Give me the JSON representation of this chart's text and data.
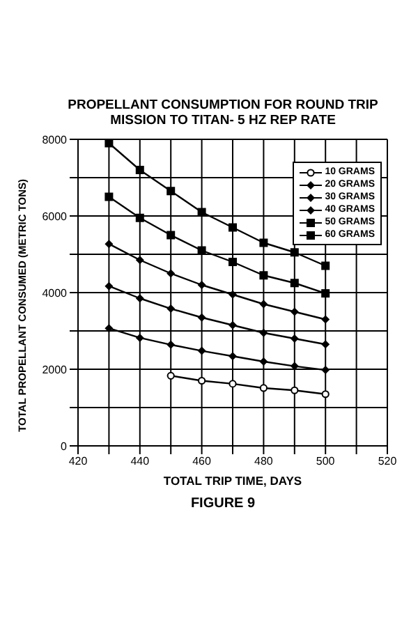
{
  "chart_data": {
    "type": "line",
    "title": "PROPELLANT CONSUMPTION FOR ROUND TRIP MISSION TO TITAN- 5 HZ REP RATE",
    "xlabel": "TOTAL TRIP TIME, DAYS",
    "ylabel": "TOTAL PROPELLANT CONSUMED (METRIC TONS)",
    "annotations": [
      "FIGURE 9"
    ],
    "x": [
      430,
      440,
      450,
      460,
      470,
      480,
      490,
      500
    ],
    "series": [
      {
        "name": "10 GRAMS",
        "color": "#000000",
        "marker": "circle",
        "x": [
          450,
          460,
          470,
          480,
          490,
          500
        ],
        "values": [
          1830,
          1700,
          1620,
          1510,
          1450,
          1350
        ]
      },
      {
        "name": "20 GRAMS",
        "color": "#000000",
        "marker": "diamond",
        "values": [
          3070,
          2820,
          2640,
          2480,
          2340,
          2200,
          2080,
          1980
        ]
      },
      {
        "name": "30 GRAMS",
        "color": "#000000",
        "marker": "diamond",
        "values": [
          4170,
          3850,
          3580,
          3350,
          3150,
          2950,
          2800,
          2650
        ]
      },
      {
        "name": "40 GRAMS",
        "color": "#000000",
        "marker": "diamond",
        "values": [
          5270,
          4850,
          4500,
          4200,
          3950,
          3700,
          3500,
          3300
        ]
      },
      {
        "name": "50 GRAMS",
        "color": "#000000",
        "marker": "square",
        "values": [
          6500,
          5950,
          5500,
          5100,
          4800,
          4450,
          4250,
          3980
        ]
      },
      {
        "name": "60 GRAMS",
        "color": "#000000",
        "marker": "square",
        "values": [
          7900,
          7200,
          6650,
          6100,
          5700,
          5300,
          5050,
          4700
        ]
      }
    ],
    "xlim": [
      420,
      520
    ],
    "xticks": [
      420,
      {
        "value": 430,
        "label": null
      },
      440,
      {
        "value": 450,
        "label": null
      },
      460,
      {
        "value": 470,
        "label": null
      },
      480,
      {
        "value": 490,
        "label": null
      },
      500,
      {
        "value": 510,
        "label": null
      },
      520
    ],
    "ylim": [
      0,
      8000
    ],
    "yticks": [
      0,
      {
        "value": 1000,
        "label": null
      },
      2000,
      {
        "value": 3000,
        "label": null
      },
      4000,
      {
        "value": 5000,
        "label": null
      },
      6000,
      {
        "value": 7000,
        "label": null
      },
      8000
    ],
    "grid": true,
    "legend": "top right",
    "line_style": "solid"
  }
}
